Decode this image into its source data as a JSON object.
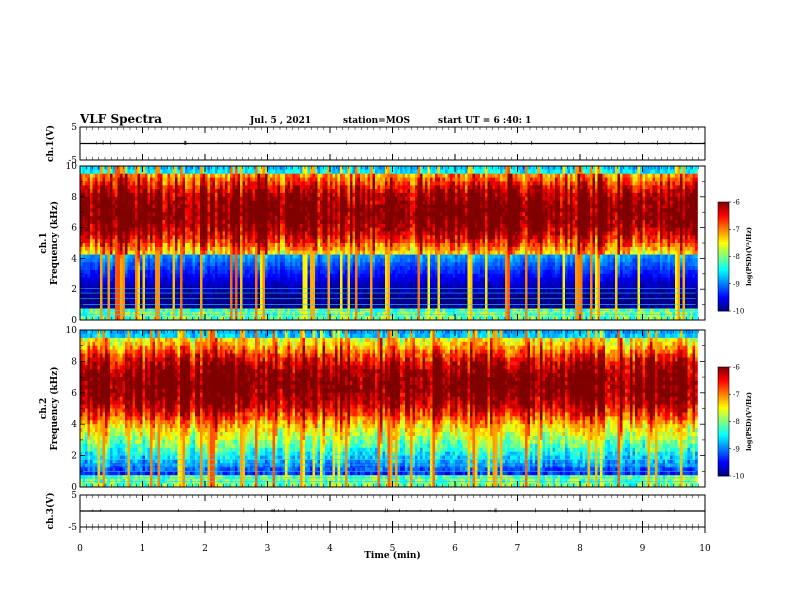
{
  "header": {
    "title": "VLF Spectra",
    "date": "Jul. 5 , 2021",
    "station": "station=MOS",
    "start_ut": "start UT = 6 :40: 1"
  },
  "chart_data": {
    "type": "heatmap",
    "x_axis": {
      "label": "Time (min)",
      "range": [
        0,
        10
      ],
      "ticks": [
        "0",
        "1",
        "2",
        "3",
        "4",
        "5",
        "6",
        "7",
        "8",
        "9",
        "10"
      ]
    },
    "panels": [
      {
        "id": "ch1-waveform",
        "kind": "line",
        "ylabel": "ch.1(V)",
        "ylim": [
          -5,
          5
        ],
        "yticks": [
          "5",
          "-5"
        ],
        "baseline_value": 0
      },
      {
        "id": "ch1-spectrogram",
        "kind": "spectrogram",
        "ylabel_line1": "ch.1",
        "ylabel_line2": "Frequency (kHz)",
        "ylim": [
          0,
          10
        ],
        "yticks": [
          "0",
          "2",
          "4",
          "6",
          "8",
          "10"
        ],
        "data_end_min": 9.85,
        "dominant_band_khz": [
          4.5,
          9.5
        ],
        "colorbar": {
          "label": "log(PSD)(V²/Hz)",
          "range": [
            -10,
            -6
          ],
          "ticks": [
            "-6",
            "-7",
            "-8",
            "-9",
            "-10"
          ]
        }
      },
      {
        "id": "ch2-spectrogram",
        "kind": "spectrogram",
        "ylabel_line1": "ch.2",
        "ylabel_line2": "Frequency (kHz)",
        "ylim": [
          0,
          10
        ],
        "yticks": [
          "0",
          "2",
          "4",
          "6",
          "8",
          "10"
        ],
        "data_end_min": 9.85,
        "dominant_band_khz": [
          4.0,
          9.0
        ],
        "colorbar": {
          "label": "log(PSD)(V²/Hz)",
          "range": [
            -10,
            -6
          ],
          "ticks": [
            "-6",
            "-7",
            "-8",
            "-9",
            "-10"
          ]
        }
      },
      {
        "id": "ch3-waveform",
        "kind": "line",
        "ylabel": "ch.3(V)",
        "ylim": [
          -5,
          5
        ],
        "yticks": [
          "5",
          "-5"
        ],
        "baseline_value": 0
      }
    ]
  }
}
